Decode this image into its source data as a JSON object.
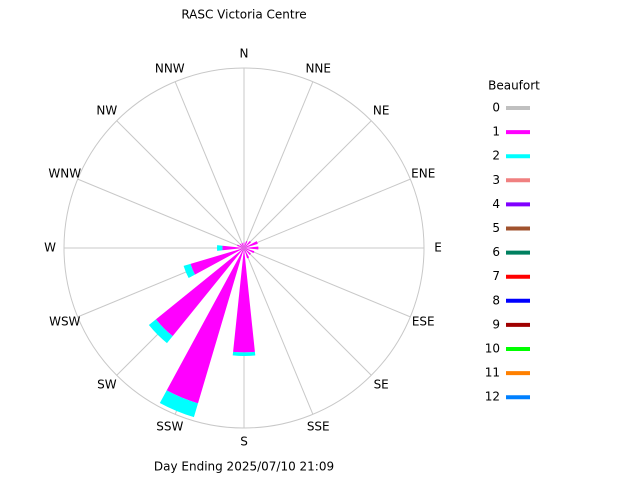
{
  "chart_data": {
    "type": "windrose",
    "title": "RASC Victoria Centre",
    "footer": "Day Ending 2025/07/10 21:09",
    "legend_title": "Beaufort",
    "categories": [
      "N",
      "NNE",
      "NE",
      "ENE",
      "E",
      "ESE",
      "SE",
      "SSE",
      "S",
      "SSW",
      "SW",
      "WSW",
      "W",
      "WNW",
      "NW",
      "NNW"
    ],
    "rlim": [
      0,
      100
    ],
    "series": [
      {
        "name": "0",
        "color": "#c0c0c0",
        "values": [
          0,
          0,
          0,
          0,
          0,
          0,
          0,
          0,
          0,
          0,
          0,
          0,
          0,
          0,
          0,
          0
        ]
      },
      {
        "name": "1",
        "color": "#ff00ff",
        "values": [
          3,
          4,
          5,
          8,
          8,
          6,
          5,
          6,
          58,
          90,
          63,
          31,
          12,
          4,
          3,
          3
        ]
      },
      {
        "name": "2",
        "color": "#00ffff",
        "values": [
          0,
          0,
          0,
          0,
          0,
          0,
          0,
          0,
          2,
          8,
          5,
          4,
          3,
          0,
          0,
          0
        ]
      },
      {
        "name": "3",
        "color": "#f08080",
        "values": [
          0,
          0,
          0,
          0,
          0,
          0,
          0,
          0,
          0,
          0,
          0,
          0,
          0,
          0,
          0,
          0
        ]
      },
      {
        "name": "4",
        "color": "#8000ff",
        "values": [
          0,
          0,
          0,
          0,
          0,
          0,
          0,
          0,
          0,
          0,
          0,
          0,
          0,
          0,
          0,
          0
        ]
      },
      {
        "name": "5",
        "color": "#a0522d",
        "values": [
          0,
          0,
          0,
          0,
          0,
          0,
          0,
          0,
          0,
          0,
          0,
          0,
          0,
          0,
          0,
          0
        ]
      },
      {
        "name": "6",
        "color": "#008060",
        "values": [
          0,
          0,
          0,
          0,
          0,
          0,
          0,
          0,
          0,
          0,
          0,
          0,
          0,
          0,
          0,
          0
        ]
      },
      {
        "name": "7",
        "color": "#ff0000",
        "values": [
          0,
          0,
          0,
          0,
          0,
          0,
          0,
          0,
          0,
          0,
          0,
          0,
          0,
          0,
          0,
          0
        ]
      },
      {
        "name": "8",
        "color": "#0000ff",
        "values": [
          0,
          0,
          0,
          0,
          0,
          0,
          0,
          0,
          0,
          0,
          0,
          0,
          0,
          0,
          0,
          0
        ]
      },
      {
        "name": "9",
        "color": "#a00000",
        "values": [
          0,
          0,
          0,
          0,
          0,
          0,
          0,
          0,
          0,
          0,
          0,
          0,
          0,
          0,
          0,
          0
        ]
      },
      {
        "name": "10",
        "color": "#00ff00",
        "values": [
          0,
          0,
          0,
          0,
          0,
          0,
          0,
          0,
          0,
          0,
          0,
          0,
          0,
          0,
          0,
          0
        ]
      },
      {
        "name": "11",
        "color": "#ff8000",
        "values": [
          0,
          0,
          0,
          0,
          0,
          0,
          0,
          0,
          0,
          0,
          0,
          0,
          0,
          0,
          0,
          0
        ]
      },
      {
        "name": "12",
        "color": "#0080ff",
        "values": [
          0,
          0,
          0,
          0,
          0,
          0,
          0,
          0,
          0,
          0,
          0,
          0,
          0,
          0,
          0,
          0
        ]
      }
    ]
  }
}
